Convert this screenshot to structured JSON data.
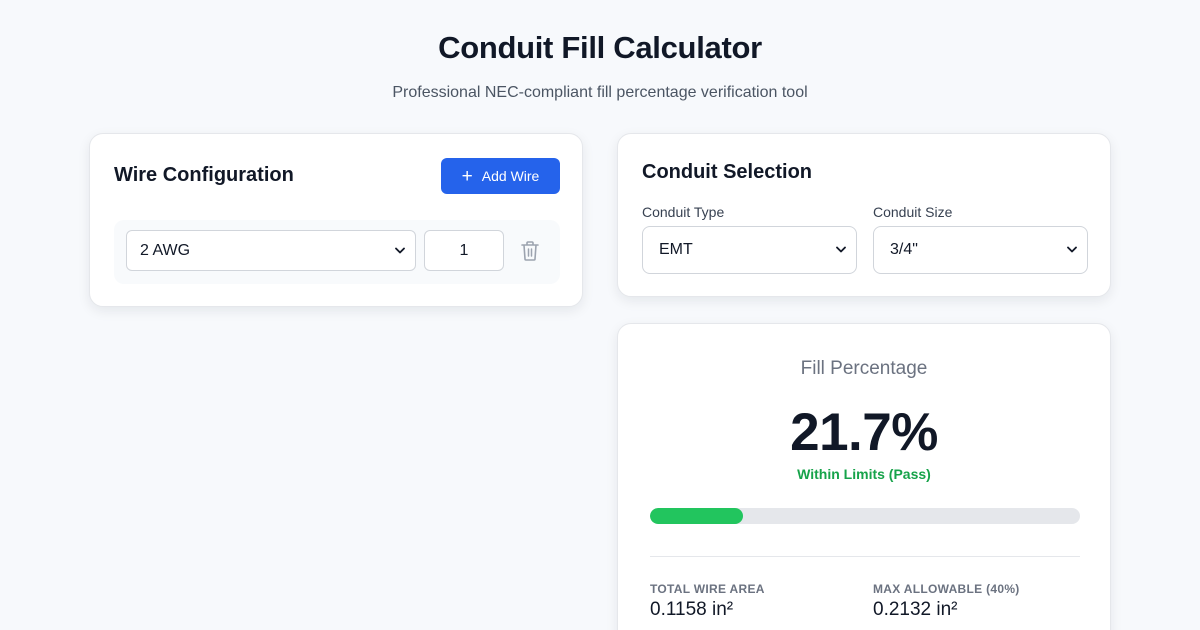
{
  "header": {
    "title": "Conduit Fill Calculator",
    "subtitle": "Professional NEC-compliant fill percentage verification tool"
  },
  "wire_config": {
    "title": "Wire Configuration",
    "add_button_label": "Add Wire",
    "wires": [
      {
        "gauge": "2 AWG",
        "quantity": "1"
      }
    ]
  },
  "conduit": {
    "title": "Conduit Selection",
    "type_label": "Conduit Type",
    "type_value": "EMT",
    "size_label": "Conduit Size",
    "size_value": "3/4\""
  },
  "result": {
    "fill_label": "Fill Percentage",
    "fill_value": "21.7%",
    "fill_fraction": 0.217,
    "status": "Within Limits (Pass)",
    "total_area_label": "TOTAL WIRE AREA",
    "total_area_value": "0.1158 in²",
    "max_allowable_label": "MAX ALLOWABLE (40%)",
    "max_allowable_value": "0.2132 in²"
  },
  "colors": {
    "accent": "#2563eb",
    "pass": "#16a34a",
    "progress": "#22c55e",
    "track": "#e5e7eb"
  },
  "icons": [
    "plus-icon",
    "chevron-down-icon",
    "trash-icon"
  ]
}
